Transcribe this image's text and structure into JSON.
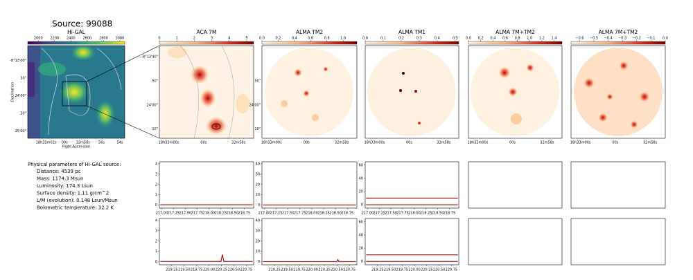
{
  "title": "Source: 99088",
  "info": {
    "heading": "Physical parameters of Hi-GAL source:",
    "lines": [
      "Distance: 4539 pc",
      "Mass: 1174.3 Msun",
      "Luminosity: 174.3 Lsun",
      "Surface density: 1.11 g/cm^2",
      "L/M (evolution): 0.148 Lsun/Msun",
      "Bolometric temperature: 32.2 K"
    ]
  },
  "images": [
    {
      "title": "Hi-GAL",
      "cmap": "viridis",
      "clim": [
        1870,
        3060
      ],
      "cticks": [
        2000,
        2200,
        2400,
        2600,
        2800,
        3000
      ],
      "xticks": [
        "18h33m02s",
        "00s",
        "32m58s",
        "56s",
        "54s"
      ],
      "yticks": [
        "-8°13'00\"",
        "30\"",
        "24'00\"",
        "30\"",
        "25'00\""
      ],
      "xlabel": "Right Ascension",
      "ylabel": "Declination"
    },
    {
      "title": "ACA 7M",
      "cmap": "OrRd",
      "clim": [
        0,
        5.4
      ],
      "cticks": [
        0,
        1,
        2,
        3,
        4,
        5
      ],
      "xticks": [
        "18h33m00s",
        "00s",
        "32m58s"
      ],
      "yticks": [
        "-8°13'40\"",
        "50\"",
        "24'00\"",
        "10\""
      ]
    },
    {
      "title": "ALMA TM2",
      "cmap": "OrRd",
      "clim": [
        0,
        1.17
      ],
      "cticks": [
        {
          "value": 0,
          "label": "0.0"
        },
        {
          "value": 0.2,
          "label": "0.2"
        },
        {
          "value": 0.4,
          "label": "0.4"
        },
        {
          "value": 0.6,
          "label": "0.6"
        },
        {
          "value": 0.8,
          "label": "0.8"
        },
        {
          "value": 1,
          "label": "1.0"
        }
      ],
      "xticks": [
        "18h33m00s",
        "00s",
        "32m58s"
      ],
      "yticks": [
        "50\"",
        "24'00\"",
        "10\""
      ]
    },
    {
      "title": "ALMA TM1",
      "cmap": "OrRd",
      "clim": [
        0,
        0.52
      ],
      "cticks": [
        {
          "value": 0,
          "label": "0.0"
        },
        0.1,
        0.2,
        0.3,
        0.4,
        0.5
      ],
      "xticks": [
        "18h33m00s",
        "00s",
        "32m58s"
      ]
    },
    {
      "title": "ALMA 7M+TM2",
      "cmap": "OrRd",
      "clim": [
        0,
        1.53
      ],
      "cticks": [
        {
          "value": 0,
          "label": "0.0"
        },
        0.2,
        0.4,
        0.6,
        0.8,
        {
          "value": 1,
          "label": "1.0"
        },
        1.2,
        1.4
      ],
      "xticks": [
        "18h33m00s",
        "00s",
        "32m58s"
      ]
    },
    {
      "title": "ALMA 7M+TM2",
      "cmap": "OrRd",
      "clim": [
        -0.66,
        0
      ],
      "cticks": [
        {
          "value": -0.6,
          "label": "−0.6"
        },
        {
          "value": -0.5,
          "label": "−0.5"
        },
        {
          "value": -0.4,
          "label": "−0.4"
        },
        {
          "value": -0.3,
          "label": "−0.3"
        },
        {
          "value": -0.2,
          "label": "−0.2"
        },
        {
          "value": -0.1,
          "label": "−0.1"
        },
        {
          "value": 0,
          "label": "0.0"
        }
      ],
      "xticks": [
        "18h33m00s",
        "00s",
        "32m58s"
      ]
    }
  ],
  "chart_data": [
    {
      "type": "line",
      "xlim": [
        216.95,
        218.95
      ],
      "ylim": [
        -0.3,
        4.2
      ],
      "yticks": [
        0,
        1,
        2,
        3,
        4
      ],
      "xticks": [
        {
          "value": 217,
          "label": "217.00"
        },
        217.25,
        {
          "value": 217.5,
          "label": "217.50"
        },
        217.75,
        {
          "value": 218,
          "label": "218.00"
        },
        218.25,
        {
          "value": 218.5,
          "label": "218.50"
        },
        218.75
      ],
      "series": [
        {
          "color": "#9b1010",
          "x": [
            216.97,
            217.5,
            218,
            218.5,
            218.93
          ],
          "values": [
            0.02,
            0.02,
            0.02,
            0.02,
            0.02
          ]
        }
      ]
    },
    {
      "type": "line",
      "xlim": [
        216.95,
        218.95
      ],
      "ylim": [
        -3,
        42
      ],
      "yticks": [
        0,
        10,
        20,
        30,
        40
      ],
      "xticks": [
        {
          "value": 217,
          "label": "217.00"
        },
        217.25,
        {
          "value": 217.5,
          "label": "217.50"
        },
        217.75,
        {
          "value": 218,
          "label": "218.00"
        },
        218.25,
        {
          "value": 218.5,
          "label": "218.50"
        },
        218.75
      ],
      "series": [
        {
          "color": "#9b1010",
          "x": [
            216.97,
            217.5,
            218,
            218.5,
            218.93
          ],
          "values": [
            0,
            0,
            0,
            0,
            0
          ]
        }
      ]
    },
    {
      "type": "line",
      "xlim": [
        216.95,
        218.95
      ],
      "ylim": [
        -5,
        65
      ],
      "yticks": [
        0,
        20,
        40,
        60
      ],
      "xticks": [
        {
          "value": 217,
          "label": "217.00"
        },
        217.25,
        {
          "value": 217.5,
          "label": "217.50"
        },
        217.75,
        {
          "value": 218,
          "label": "218.00"
        },
        218.25,
        {
          "value": 218.5,
          "label": "218.50"
        },
        218.75
      ],
      "series": [
        {
          "color": "#9b1010",
          "x": [
            216.97,
            217.5,
            218,
            218.5,
            218.93
          ],
          "values": [
            10,
            10,
            10,
            10,
            10
          ]
        },
        {
          "color": "#9b1010",
          "x": [
            216.97,
            217.5,
            218,
            218.5,
            218.93
          ],
          "values": [
            0,
            0,
            0,
            0,
            0
          ]
        }
      ]
    },
    {
      "type": "line",
      "xlim": [
        219.0,
        220.9
      ],
      "ylim": [
        -0.3,
        4.2
      ],
      "yticks": [
        0,
        1,
        2,
        3,
        4
      ],
      "xticks": [
        219.25,
        {
          "value": 219.5,
          "label": "219.50"
        },
        219.75,
        {
          "value": 220,
          "label": "220.00"
        },
        220.25,
        {
          "value": 220.5,
          "label": "220.50"
        },
        220.75
      ],
      "series": [
        {
          "color": "#9b1010",
          "x": [
            219.02,
            219.5,
            220.24,
            220.27,
            220.3,
            220.6,
            220.88
          ],
          "values": [
            0.02,
            0.02,
            0.02,
            0.7,
            0.02,
            0.02,
            0.02
          ]
        }
      ]
    },
    {
      "type": "line",
      "xlim": [
        219.0,
        220.9
      ],
      "ylim": [
        -3,
        42
      ],
      "yticks": [
        0,
        10,
        20,
        30,
        40
      ],
      "xticks": [
        219.25,
        {
          "value": 219.5,
          "label": "219.50"
        },
        219.75,
        {
          "value": 220,
          "label": "220.00"
        },
        220.25,
        {
          "value": 220.5,
          "label": "220.50"
        },
        220.75
      ],
      "series": [
        {
          "color": "#9b1010",
          "x": [
            219.02,
            219.5,
            220.5,
            220.52,
            220.54,
            220.88
          ],
          "values": [
            0,
            0,
            0,
            2,
            0,
            0
          ]
        }
      ]
    },
    {
      "type": "line",
      "xlim": [
        219.0,
        220.9
      ],
      "ylim": [
        -5,
        65
      ],
      "yticks": [
        0,
        20,
        40,
        60
      ],
      "xticks": [
        219.25,
        {
          "value": 219.5,
          "label": "219.50"
        },
        219.75,
        {
          "value": 220,
          "label": "220.00"
        },
        220.25,
        {
          "value": 220.5,
          "label": "220.50"
        },
        220.75
      ],
      "series": [
        {
          "color": "#9b1010",
          "x": [
            219.02,
            219.5,
            220,
            220.5,
            220.88
          ],
          "values": [
            10,
            10,
            10,
            10,
            10
          ]
        },
        {
          "color": "#9b1010",
          "x": [
            219.02,
            219.5,
            220,
            220.5,
            220.88
          ],
          "values": [
            0,
            0,
            0,
            0,
            0
          ]
        }
      ]
    }
  ]
}
